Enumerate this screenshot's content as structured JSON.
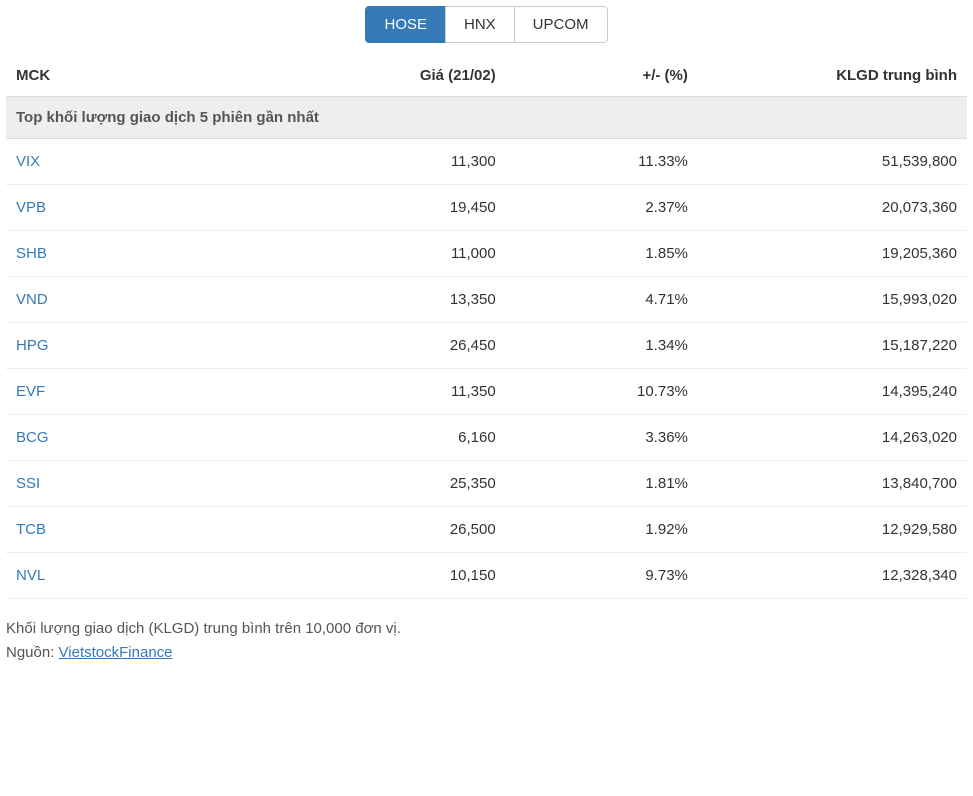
{
  "tabs": [
    {
      "label": "HOSE",
      "active": true
    },
    {
      "label": "HNX",
      "active": false
    },
    {
      "label": "UPCOM",
      "active": false
    }
  ],
  "columns": {
    "mck": "MCK",
    "price": "Giá (21/02)",
    "change": "+/- (%)",
    "volume": "KLGD trung bình"
  },
  "section_title": "Top khối lượng giao dịch 5 phiên gần nhất",
  "change_positive_color": "#009933",
  "change_negative_color": "#cc0000",
  "link_color": "#337ab7",
  "rows": [
    {
      "ticker": "VIX",
      "price": "11,300",
      "change": "11.33%",
      "direction": "positive",
      "volume": "51,539,800"
    },
    {
      "ticker": "VPB",
      "price": "19,450",
      "change": "2.37%",
      "direction": "positive",
      "volume": "20,073,360"
    },
    {
      "ticker": "SHB",
      "price": "11,000",
      "change": "1.85%",
      "direction": "positive",
      "volume": "19,205,360"
    },
    {
      "ticker": "VND",
      "price": "13,350",
      "change": "4.71%",
      "direction": "positive",
      "volume": "15,993,020"
    },
    {
      "ticker": "HPG",
      "price": "26,450",
      "change": "1.34%",
      "direction": "positive",
      "volume": "15,187,220"
    },
    {
      "ticker": "EVF",
      "price": "11,350",
      "change": "10.73%",
      "direction": "positive",
      "volume": "14,395,240"
    },
    {
      "ticker": "BCG",
      "price": "6,160",
      "change": "3.36%",
      "direction": "positive",
      "volume": "14,263,020"
    },
    {
      "ticker": "SSI",
      "price": "25,350",
      "change": "1.81%",
      "direction": "positive",
      "volume": "13,840,700"
    },
    {
      "ticker": "TCB",
      "price": "26,500",
      "change": "1.92%",
      "direction": "positive",
      "volume": "12,929,580"
    },
    {
      "ticker": "NVL",
      "price": "10,150",
      "change": "9.73%",
      "direction": "positive",
      "volume": "12,328,340"
    }
  ],
  "footer": {
    "note": "Khối lượng giao dịch (KLGD) trung bình trên 10,000 đơn vị.",
    "source_label": "Nguồn: ",
    "source_link_text": "VietstockFinance"
  }
}
